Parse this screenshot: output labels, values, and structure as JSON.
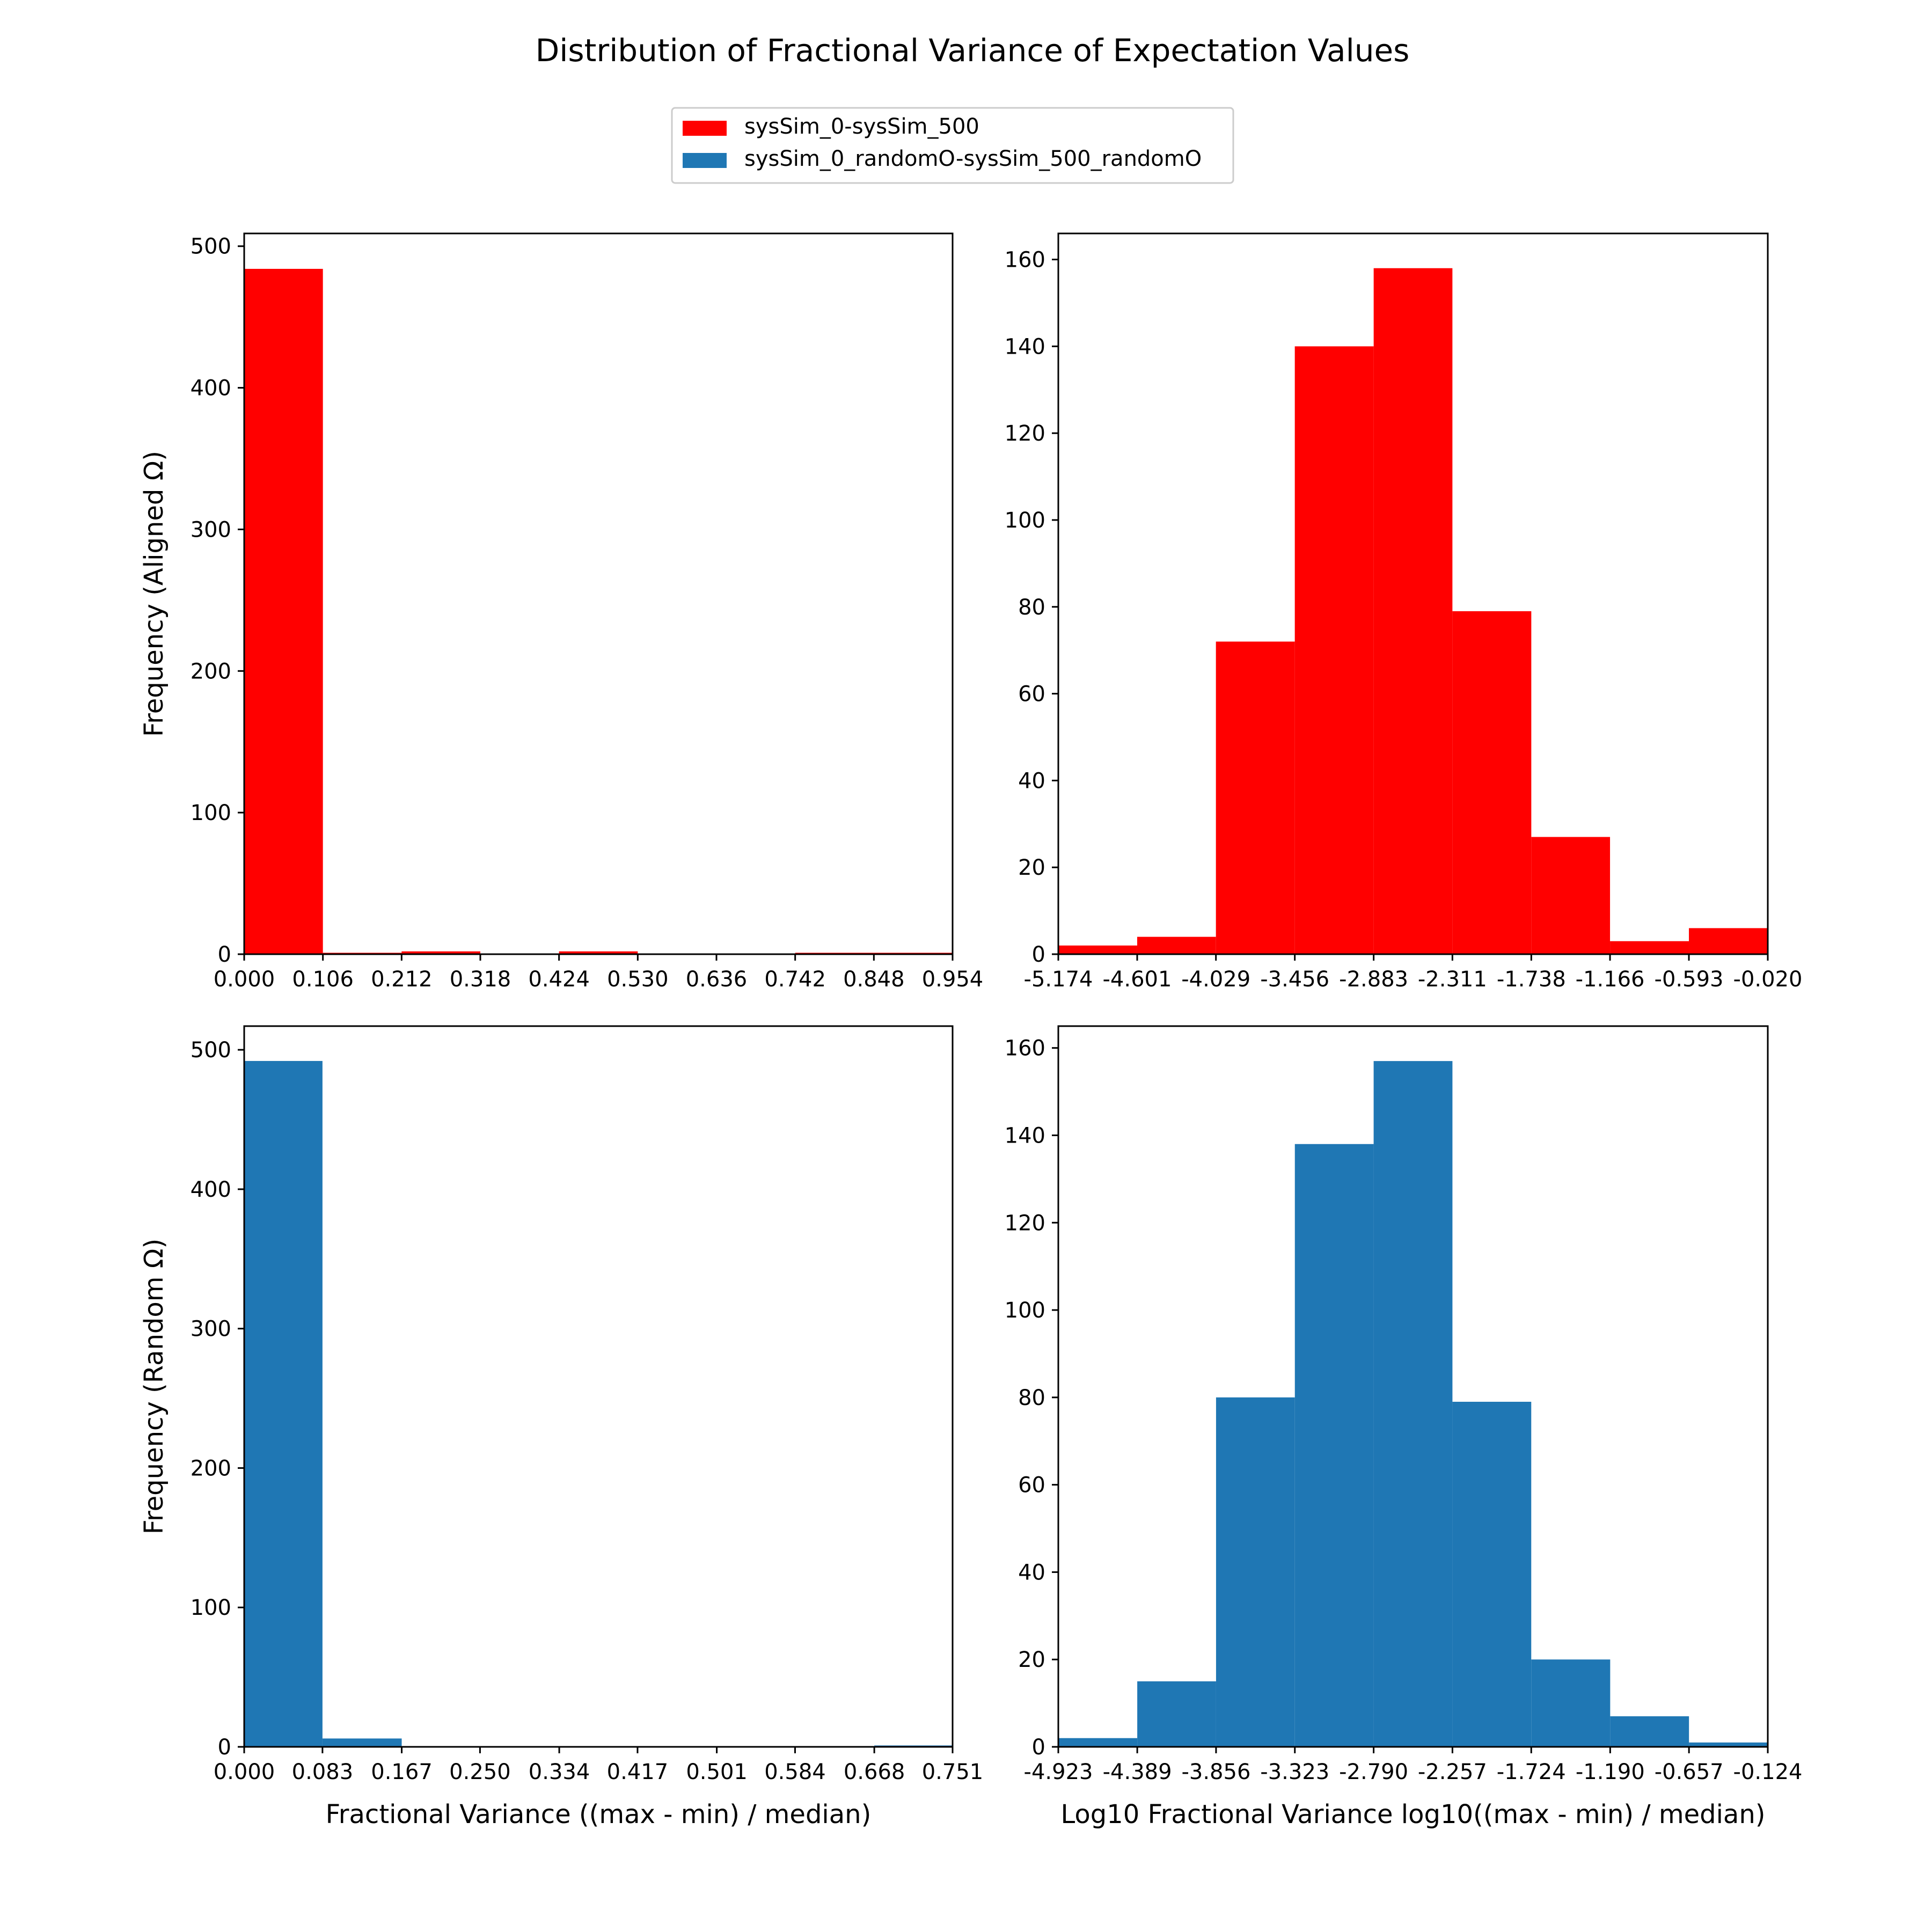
{
  "title": "Distribution of Fractional Variance of Expectation Values",
  "legend": {
    "placement": "top-center",
    "entries": [
      {
        "label": "sysSim_0-sysSim_500",
        "color": "#ff0000"
      },
      {
        "label": "sysSim_0_randomO-sysSim_500_randomO",
        "color": "#1f77b4"
      }
    ]
  },
  "chart_data": [
    {
      "type": "bar",
      "panel": "top-left",
      "series_name": "sysSim_0-sysSim_500",
      "color": "#ff0000",
      "xlabel": "",
      "ylabel": "Frequency (Aligned Ω)",
      "bin_edges": [
        0.0,
        0.106,
        0.212,
        0.318,
        0.424,
        0.53,
        0.636,
        0.742,
        0.848,
        0.954
      ],
      "xtick_labels": [
        "0.000",
        "0.106",
        "0.212",
        "0.318",
        "0.424",
        "0.530",
        "0.636",
        "0.742",
        "0.848",
        "0.954"
      ],
      "values": [
        484,
        1,
        2,
        0,
        2,
        0,
        0,
        1,
        1
      ],
      "ylim": [
        0,
        509
      ],
      "yticks": [
        0,
        100,
        200,
        300,
        400,
        500
      ]
    },
    {
      "type": "bar",
      "panel": "top-right",
      "series_name": "sysSim_0-sysSim_500",
      "color": "#ff0000",
      "xlabel": "",
      "ylabel": "",
      "bin_edges": [
        -5.174,
        -4.601,
        -4.029,
        -3.456,
        -2.883,
        -2.311,
        -1.738,
        -1.166,
        -0.593,
        -0.02
      ],
      "xtick_labels": [
        "-5.174",
        "-4.601",
        "-4.029",
        "-3.456",
        "-2.883",
        "-2.311",
        "-1.738",
        "-1.166",
        "-0.593",
        "-0.020"
      ],
      "values": [
        2,
        4,
        72,
        140,
        158,
        79,
        27,
        3,
        6
      ],
      "ylim": [
        0,
        166
      ],
      "yticks": [
        0,
        20,
        40,
        60,
        80,
        100,
        120,
        140,
        160
      ]
    },
    {
      "type": "bar",
      "panel": "bottom-left",
      "series_name": "sysSim_0_randomO-sysSim_500_randomO",
      "color": "#1f77b4",
      "xlabel": "Fractional Variance ((max - min) / median)",
      "ylabel": "Frequency (Random Ω)",
      "bin_edges": [
        0.0,
        0.083,
        0.167,
        0.25,
        0.334,
        0.417,
        0.501,
        0.584,
        0.668,
        0.751
      ],
      "xtick_labels": [
        "0.000",
        "0.083",
        "0.167",
        "0.250",
        "0.334",
        "0.417",
        "0.501",
        "0.584",
        "0.668",
        "0.751"
      ],
      "values": [
        492,
        6,
        0,
        0,
        0,
        0,
        0,
        0,
        1
      ],
      "ylim": [
        0,
        517
      ],
      "yticks": [
        0,
        100,
        200,
        300,
        400,
        500
      ]
    },
    {
      "type": "bar",
      "panel": "bottom-right",
      "series_name": "sysSim_0_randomO-sysSim_500_randomO",
      "color": "#1f77b4",
      "xlabel": "Log10 Fractional Variance log10((max - min) / median)",
      "ylabel": "",
      "bin_edges": [
        -4.923,
        -4.389,
        -3.856,
        -3.323,
        -2.79,
        -2.257,
        -1.724,
        -1.19,
        -0.657,
        -0.124
      ],
      "xtick_labels": [
        "-4.923",
        "-4.389",
        "-3.856",
        "-3.323",
        "-2.790",
        "-2.257",
        "-1.724",
        "-1.190",
        "-0.657",
        "-0.124"
      ],
      "values": [
        2,
        15,
        80,
        138,
        157,
        79,
        20,
        7,
        1
      ],
      "ylim": [
        0,
        165
      ],
      "yticks": [
        0,
        20,
        40,
        60,
        80,
        100,
        120,
        140,
        160
      ]
    }
  ]
}
